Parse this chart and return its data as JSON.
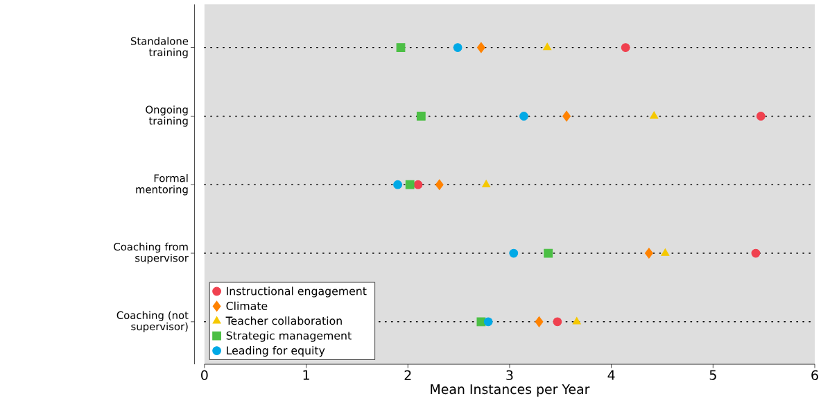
{
  "chart_data": {
    "type": "scatter",
    "orientation": "horizontal",
    "xlabel": "Mean Instances per Year",
    "categories": [
      "Standalone training",
      "Ongoing training",
      "Formal mentoring",
      "Coaching from supervisor",
      "Coaching (not supervisor)"
    ],
    "series": [
      {
        "name": "Instructional engagement",
        "color": "#f0414f",
        "marker": "circle",
        "values": [
          4.14,
          5.47,
          2.1,
          5.42,
          3.47
        ]
      },
      {
        "name": "Climate",
        "color": "#ff8200",
        "marker": "diamond",
        "values": [
          2.72,
          3.56,
          2.31,
          4.37,
          3.29
        ]
      },
      {
        "name": "Teacher collaboration",
        "color": "#f5c800",
        "marker": "triangle",
        "values": [
          3.37,
          4.42,
          2.77,
          4.53,
          3.66
        ]
      },
      {
        "name": "Strategic management",
        "color": "#4cbf45",
        "marker": "square",
        "values": [
          1.93,
          2.13,
          2.02,
          3.38,
          2.72
        ]
      },
      {
        "name": "Leading for equity",
        "color": "#00a9e6",
        "marker": "circle",
        "values": [
          2.49,
          3.14,
          1.9,
          3.04,
          2.79
        ]
      }
    ],
    "xlim": [
      0,
      6
    ],
    "xticks": [
      0,
      1,
      2,
      3,
      4,
      5,
      6
    ],
    "grid": "y",
    "legend": "bottom left"
  }
}
